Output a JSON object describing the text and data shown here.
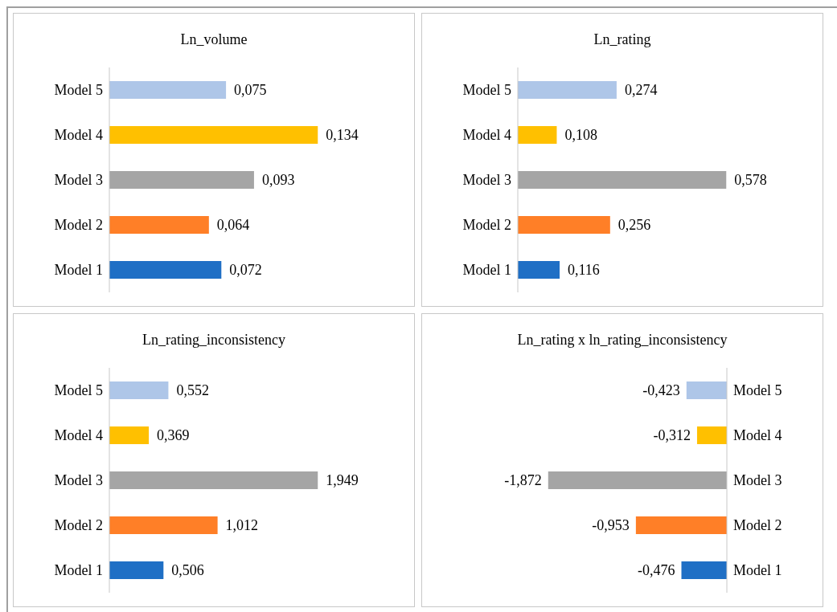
{
  "chart_data": [
    {
      "type": "bar",
      "orientation": "horizontal",
      "title": "Ln_volume",
      "categories": [
        "Model 5",
        "Model 4",
        "Model 3",
        "Model 2",
        "Model 1"
      ],
      "values": [
        0.075,
        0.134,
        0.093,
        0.064,
        0.072
      ],
      "colors": [
        "#aec6e8",
        "#ffc000",
        "#a5a5a5",
        "#ff7f27",
        "#1f6fc5"
      ],
      "value_labels": [
        "0,075",
        "0,134",
        "0,093",
        "0,064",
        "0,072"
      ]
    },
    {
      "type": "bar",
      "orientation": "horizontal",
      "title": "Ln_rating",
      "categories": [
        "Model 5",
        "Model 4",
        "Model 3",
        "Model 2",
        "Model 1"
      ],
      "values": [
        0.274,
        0.108,
        0.578,
        0.256,
        0.116
      ],
      "colors": [
        "#aec6e8",
        "#ffc000",
        "#a5a5a5",
        "#ff7f27",
        "#1f6fc5"
      ],
      "value_labels": [
        "0,274",
        "0,108",
        "0,578",
        "0,256",
        "0,116"
      ]
    },
    {
      "type": "bar",
      "orientation": "horizontal",
      "title": "Ln_rating_inconsistency",
      "categories": [
        "Model 5",
        "Model 4",
        "Model 3",
        "Model 2",
        "Model 1"
      ],
      "values": [
        0.552,
        0.369,
        1.949,
        1.012,
        0.506
      ],
      "colors": [
        "#aec6e8",
        "#ffc000",
        "#a5a5a5",
        "#ff7f27",
        "#1f6fc5"
      ],
      "value_labels": [
        "0,552",
        "0,369",
        "1,949",
        "1,012",
        "0,506"
      ]
    },
    {
      "type": "bar",
      "orientation": "horizontal",
      "title": "Ln_rating x ln_rating_inconsistency",
      "categories": [
        "Model 5",
        "Model 4",
        "Model 3",
        "Model 2",
        "Model 1"
      ],
      "values": [
        -0.423,
        -0.312,
        -1.872,
        -0.953,
        -0.476
      ],
      "colors": [
        "#aec6e8",
        "#ffc000",
        "#a5a5a5",
        "#ff7f27",
        "#1f6fc5"
      ],
      "value_labels": [
        "-0,423",
        "-0,312",
        "-1,872",
        "-0,953",
        "-0,476"
      ]
    }
  ]
}
